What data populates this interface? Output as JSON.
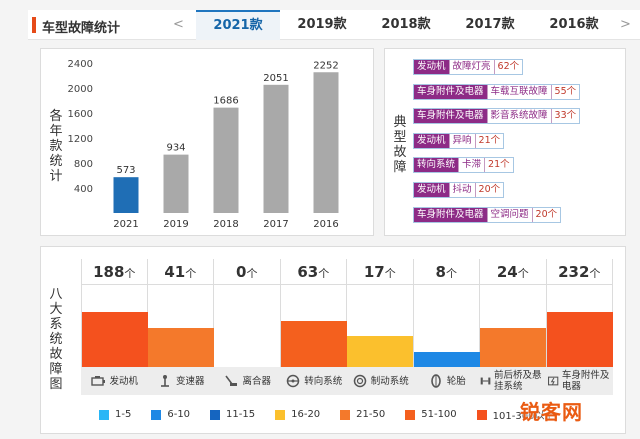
{
  "header": {
    "title": "车型故障统计",
    "prev_arrow": "<",
    "next_arrow": ">",
    "tabs": [
      {
        "label": "2021款",
        "active": true
      },
      {
        "label": "2019款",
        "active": false
      },
      {
        "label": "2018款",
        "active": false
      },
      {
        "label": "2017款",
        "active": false
      },
      {
        "label": "2016款",
        "active": false
      }
    ]
  },
  "chart_data": {
    "type": "bar",
    "ylabel": "各年款统计",
    "categories": [
      "2021",
      "2019",
      "2018",
      "2017",
      "2016"
    ],
    "values": [
      573,
      934,
      1686,
      2051,
      2252
    ],
    "ylim": [
      0,
      2400
    ],
    "yticks": [
      400,
      800,
      1200,
      1600,
      2000,
      2400
    ],
    "colors": [
      "#1f6eb5",
      "#a9a9a9",
      "#a9a9a9",
      "#a9a9a9",
      "#a9a9a9"
    ],
    "grid": false
  },
  "typical_faults": {
    "label": "典型故障",
    "items": [
      {
        "category": "发动机",
        "name": "故障灯亮",
        "count": "62个"
      },
      {
        "category": "车身附件及电器",
        "name": "车载互联故障",
        "count": "55个"
      },
      {
        "category": "车身附件及电器",
        "name": "影音系统故障",
        "count": "33个"
      },
      {
        "category": "发动机",
        "name": "异响",
        "count": "21个"
      },
      {
        "category": "转向系统",
        "name": "卡滞",
        "count": "21个"
      },
      {
        "category": "发动机",
        "name": "抖动",
        "count": "20个"
      },
      {
        "category": "车身附件及电器",
        "name": "空调问题",
        "count": "20个"
      }
    ]
  },
  "systems": {
    "label": "八大系统故障图",
    "unit": "个",
    "items": [
      {
        "name": "发动机",
        "count": "188",
        "fill": 0.67,
        "color": "#f4511e",
        "icon": "engine-icon"
      },
      {
        "name": "变速器",
        "count": "41",
        "fill": 0.47,
        "color": "#f4792b",
        "icon": "gear-shift-icon"
      },
      {
        "name": "离合器",
        "count": "0",
        "fill": 0,
        "color": "#ffffff",
        "icon": "clutch-pedal-icon"
      },
      {
        "name": "转向系统",
        "count": "63",
        "fill": 0.56,
        "color": "#f4601e",
        "icon": "steering-wheel-icon"
      },
      {
        "name": "制动系统",
        "count": "17",
        "fill": 0.38,
        "color": "#fbc02d",
        "icon": "brake-icon"
      },
      {
        "name": "轮胎",
        "count": "8",
        "fill": 0.18,
        "color": "#1e88e5",
        "icon": "tire-icon"
      },
      {
        "name": "前后桥及悬挂系统",
        "count": "24",
        "fill": 0.47,
        "color": "#f4792b",
        "icon": "suspension-icon"
      },
      {
        "name": "车身附件及电器",
        "count": "232",
        "fill": 0.67,
        "color": "#f4511e",
        "icon": "electrical-icon"
      }
    ]
  },
  "legend": [
    {
      "label": "1-5",
      "color": "#29b6f6"
    },
    {
      "label": "6-10",
      "color": "#1e88e5"
    },
    {
      "label": "11-15",
      "color": "#1565c0"
    },
    {
      "label": "16-20",
      "color": "#fbc02d"
    },
    {
      "label": "21-50",
      "color": "#f4792b"
    },
    {
      "label": "51-100",
      "color": "#f4601e"
    },
    {
      "label": "101-300以上",
      "color": "#f4511e"
    }
  ],
  "watermark": "锐客网"
}
